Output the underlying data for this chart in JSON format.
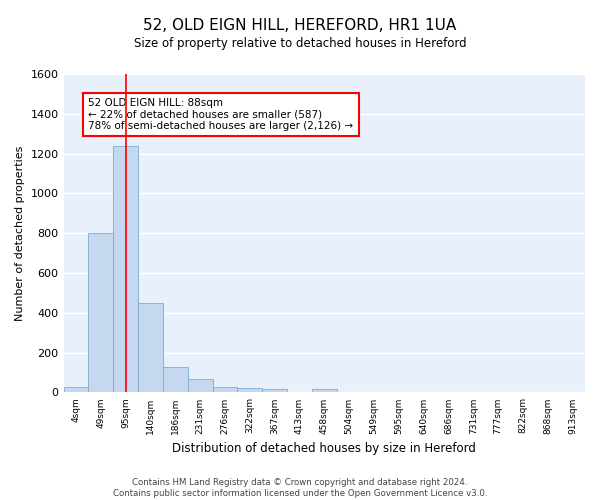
{
  "title": "52, OLD EIGN HILL, HEREFORD, HR1 1UA",
  "subtitle": "Size of property relative to detached houses in Hereford",
  "xlabel": "Distribution of detached houses by size in Hereford",
  "ylabel": "Number of detached properties",
  "bar_color": "#c5d8f0",
  "bar_edge_color": "#7aadd4",
  "background_color": "#e8f0fb",
  "grid_color": "#ffffff",
  "bin_labels": [
    "4sqm",
    "49sqm",
    "95sqm",
    "140sqm",
    "186sqm",
    "231sqm",
    "276sqm",
    "322sqm",
    "367sqm",
    "413sqm",
    "458sqm",
    "504sqm",
    "549sqm",
    "595sqm",
    "640sqm",
    "686sqm",
    "731sqm",
    "777sqm",
    "822sqm",
    "868sqm",
    "913sqm"
  ],
  "bar_heights": [
    25,
    800,
    1240,
    450,
    130,
    65,
    25,
    20,
    15,
    0,
    15,
    0,
    0,
    0,
    0,
    0,
    0,
    0,
    0,
    0,
    0
  ],
  "ylim": [
    0,
    1600
  ],
  "yticks": [
    0,
    200,
    400,
    600,
    800,
    1000,
    1200,
    1400,
    1600
  ],
  "red_line_x": 2.0,
  "annotation_text": "52 OLD EIGN HILL: 88sqm\n← 22% of detached houses are smaller (587)\n78% of semi-detached houses are larger (2,126) →",
  "footer_text": "Contains HM Land Registry data © Crown copyright and database right 2024.\nContains public sector information licensed under the Open Government Licence v3.0.",
  "figsize": [
    6.0,
    5.0
  ],
  "dpi": 100
}
